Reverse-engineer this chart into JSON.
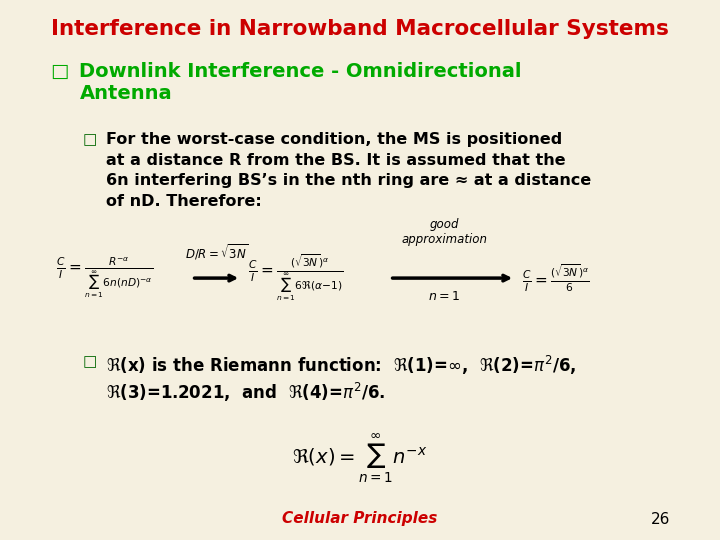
{
  "title": "Interference in Narrowband Macrocellular Systems",
  "title_color": "#cc0000",
  "bg_color": "#f5f0e0",
  "heading1": "Downlink Interference - Omnidirectional Antenna",
  "heading1_color": "#00aa00",
  "body_color": "#000000",
  "bullet_color": "#006600",
  "footer_text": "Cellular Principles",
  "footer_color": "#cc0000",
  "page_number": "26",
  "para1": "For the worst-case condition, the MS is positioned\nat a distance R from the BS. It is assumed that the\n6n interfering BS’s in the nth ring are ≈ at a distance\nof nD. Therefore:",
  "good_approx_label": "good\napproximation",
  "riemann_text": "ℜ(x) is the Riemann function:  ℜ(1)=∞,  ℜ(2)=π²/6,\nℜ(3)=1.2021,  and  ℜ(4)=π²/6."
}
